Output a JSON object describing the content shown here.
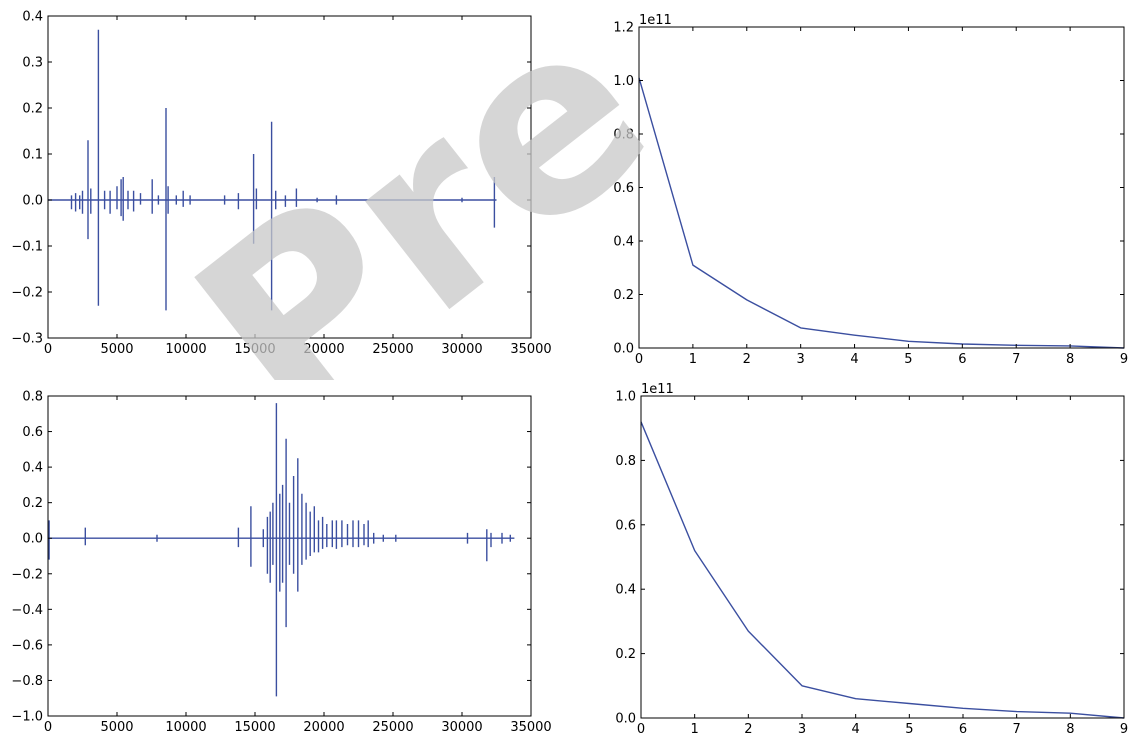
{
  "colors": {
    "line": "#3b4fa0",
    "axes": "#000000",
    "watermark": "#c8c8c8"
  },
  "watermark": {
    "text": "Pre"
  },
  "chart_data": [
    {
      "type": "line",
      "name": "top-left",
      "xlim": [
        0,
        35000
      ],
      "ylim": [
        -0.3,
        0.4
      ],
      "xticks": [
        0,
        5000,
        10000,
        15000,
        20000,
        25000,
        30000,
        35000
      ],
      "xtick_labels": [
        "0",
        "5000",
        "10000",
        "15000",
        "20000",
        "25000",
        "30000",
        "35000"
      ],
      "yticks": [
        -0.3,
        -0.2,
        -0.1,
        0.0,
        0.1,
        0.2,
        0.3,
        0.4
      ],
      "ytick_labels": [
        "−0.3",
        "−0.2",
        "−0.1",
        "0.0",
        "0.1",
        "0.2",
        "0.3",
        "0.4"
      ],
      "offset_text": "",
      "baseline_x": [
        0,
        32500
      ],
      "spikes": [
        [
          1700,
          0.01,
          -0.02
        ],
        [
          2000,
          0.015,
          -0.025
        ],
        [
          2300,
          0.01,
          -0.02
        ],
        [
          2500,
          0.02,
          -0.03
        ],
        [
          2900,
          0.13,
          -0.085
        ],
        [
          3100,
          0.025,
          -0.03
        ],
        [
          3650,
          0.37,
          -0.23
        ],
        [
          4100,
          0.02,
          -0.02
        ],
        [
          4500,
          0.02,
          -0.03
        ],
        [
          5000,
          0.03,
          -0.02
        ],
        [
          5300,
          0.045,
          -0.035
        ],
        [
          5450,
          0.05,
          -0.045
        ],
        [
          5800,
          0.02,
          -0.02
        ],
        [
          6200,
          0.02,
          -0.025
        ],
        [
          6700,
          0.015,
          -0.01
        ],
        [
          7550,
          0.045,
          -0.03
        ],
        [
          8000,
          0.01,
          -0.01
        ],
        [
          8550,
          0.2,
          -0.24
        ],
        [
          8700,
          0.03,
          -0.03
        ],
        [
          9300,
          0.01,
          -0.01
        ],
        [
          9800,
          0.02,
          -0.015
        ],
        [
          10300,
          0.01,
          -0.01
        ],
        [
          12800,
          0.01,
          -0.01
        ],
        [
          13800,
          0.015,
          -0.02
        ],
        [
          14900,
          0.1,
          -0.095
        ],
        [
          15100,
          0.025,
          -0.02
        ],
        [
          16200,
          0.17,
          -0.24
        ],
        [
          16500,
          0.02,
          -0.02
        ],
        [
          17200,
          0.01,
          -0.015
        ],
        [
          18000,
          0.025,
          -0.015
        ],
        [
          19500,
          0.005,
          -0.005
        ],
        [
          20900,
          0.01,
          -0.01
        ],
        [
          30000,
          0.005,
          -0.005
        ],
        [
          32350,
          0.05,
          -0.06
        ]
      ]
    },
    {
      "type": "line",
      "name": "top-right",
      "xlim": [
        0,
        9
      ],
      "ylim": [
        0.0,
        1.2
      ],
      "xticks": [
        0,
        1,
        2,
        3,
        4,
        5,
        6,
        7,
        8,
        9
      ],
      "xtick_labels": [
        "0",
        "1",
        "2",
        "3",
        "4",
        "5",
        "6",
        "7",
        "8",
        "9"
      ],
      "yticks": [
        0.0,
        0.2,
        0.4,
        0.6,
        0.8,
        1.0,
        1.2
      ],
      "ytick_labels": [
        "0.0",
        "0.2",
        "0.4",
        "0.6",
        "0.8",
        "1.0",
        "1.2"
      ],
      "offset_text": "1e11",
      "x": [
        0,
        1,
        2,
        3,
        4,
        5,
        6,
        7,
        8,
        9
      ],
      "y": [
        1.01,
        0.31,
        0.18,
        0.075,
        0.048,
        0.025,
        0.015,
        0.01,
        0.008,
        0.0
      ]
    },
    {
      "type": "line",
      "name": "bottom-left",
      "xlim": [
        0,
        35000
      ],
      "ylim": [
        -1.0,
        0.8
      ],
      "xticks": [
        0,
        5000,
        10000,
        15000,
        20000,
        25000,
        30000,
        35000
      ],
      "xtick_labels": [
        "0",
        "5000",
        "10000",
        "15000",
        "20000",
        "25000",
        "30000",
        "35000"
      ],
      "yticks": [
        -1.0,
        -0.8,
        -0.6,
        -0.4,
        -0.2,
        0.0,
        0.2,
        0.4,
        0.6,
        0.8
      ],
      "ytick_labels": [
        "−1.0",
        "−0.8",
        "−0.6",
        "−0.4",
        "−0.2",
        "0.0",
        "0.2",
        "0.4",
        "0.6",
        "0.8"
      ],
      "offset_text": "",
      "baseline_x": [
        0,
        33800
      ],
      "spikes": [
        [
          80,
          0.1,
          -0.12
        ],
        [
          2700,
          0.06,
          -0.04
        ],
        [
          7900,
          0.02,
          -0.02
        ],
        [
          13800,
          0.06,
          -0.05
        ],
        [
          14700,
          0.18,
          -0.16
        ],
        [
          15600,
          0.05,
          -0.05
        ],
        [
          15900,
          0.12,
          -0.2
        ],
        [
          16100,
          0.15,
          -0.25
        ],
        [
          16300,
          0.2,
          -0.15
        ],
        [
          16550,
          0.76,
          -0.89
        ],
        [
          16800,
          0.25,
          -0.3
        ],
        [
          17000,
          0.3,
          -0.25
        ],
        [
          17250,
          0.56,
          -0.5
        ],
        [
          17500,
          0.2,
          -0.15
        ],
        [
          17800,
          0.35,
          -0.2
        ],
        [
          18100,
          0.45,
          -0.3
        ],
        [
          18400,
          0.25,
          -0.15
        ],
        [
          18700,
          0.2,
          -0.12
        ],
        [
          19000,
          0.15,
          -0.1
        ],
        [
          19300,
          0.18,
          -0.08
        ],
        [
          19600,
          0.1,
          -0.08
        ],
        [
          19900,
          0.12,
          -0.06
        ],
        [
          20200,
          0.08,
          -0.05
        ],
        [
          20600,
          0.1,
          -0.05
        ],
        [
          20900,
          0.1,
          -0.06
        ],
        [
          21300,
          0.1,
          -0.05
        ],
        [
          21700,
          0.08,
          -0.04
        ],
        [
          22100,
          0.1,
          -0.05
        ],
        [
          22500,
          0.1,
          -0.05
        ],
        [
          22900,
          0.08,
          -0.04
        ],
        [
          23200,
          0.1,
          -0.05
        ],
        [
          23600,
          0.03,
          -0.03
        ],
        [
          24300,
          0.02,
          -0.02
        ],
        [
          25200,
          0.02,
          -0.02
        ],
        [
          30400,
          0.03,
          -0.03
        ],
        [
          31800,
          0.05,
          -0.13
        ],
        [
          32100,
          0.03,
          -0.05
        ],
        [
          32900,
          0.03,
          -0.03
        ],
        [
          33500,
          0.02,
          -0.02
        ]
      ]
    },
    {
      "type": "line",
      "name": "bottom-right",
      "xlim": [
        0,
        9
      ],
      "ylim": [
        0.0,
        1.0
      ],
      "xticks": [
        0,
        1,
        2,
        3,
        4,
        5,
        6,
        7,
        8,
        9
      ],
      "xtick_labels": [
        "0",
        "1",
        "2",
        "3",
        "4",
        "5",
        "6",
        "7",
        "8",
        "9"
      ],
      "yticks": [
        0.0,
        0.2,
        0.4,
        0.6,
        0.8,
        1.0
      ],
      "ytick_labels": [
        "0.0",
        "0.2",
        "0.4",
        "0.6",
        "0.8",
        "1.0"
      ],
      "offset_text": "1e11",
      "x": [
        0,
        1,
        2,
        3,
        4,
        5,
        6,
        7,
        8,
        9
      ],
      "y": [
        0.92,
        0.52,
        0.27,
        0.1,
        0.06,
        0.045,
        0.03,
        0.02,
        0.015,
        0.0
      ]
    }
  ]
}
